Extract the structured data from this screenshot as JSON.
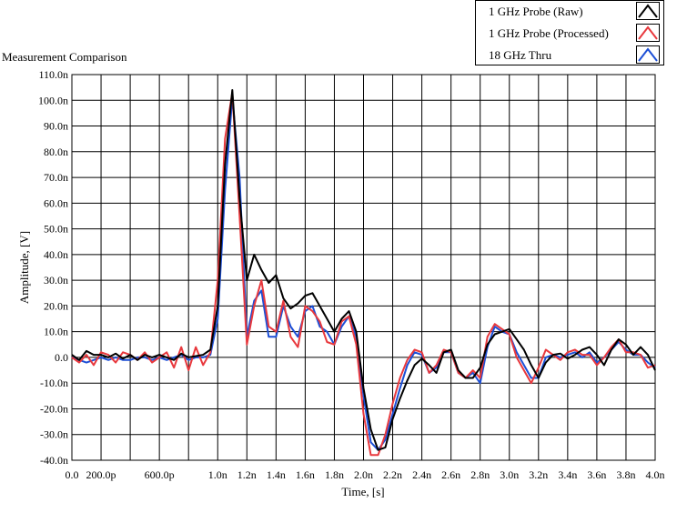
{
  "chart_data": {
    "type": "line",
    "title": "Measurement Comparison",
    "xlabel": "Time, [s]",
    "ylabel": "Amplitude, [V]",
    "xlim": [
      0,
      4e-09
    ],
    "ylim": [
      -4e-08,
      1.1e-07
    ],
    "grid": true,
    "legend_position": "top-right",
    "x_ticks": [
      {
        "value": 0,
        "label": "0.0"
      },
      {
        "value": 2e-10,
        "label": "200.0p"
      },
      {
        "value": 6e-10,
        "label": "600.0p"
      },
      {
        "value": 1e-09,
        "label": "1.0n"
      },
      {
        "value": 1.2e-09,
        "label": "1.2n"
      },
      {
        "value": 1.4e-09,
        "label": "1.4n"
      },
      {
        "value": 1.6e-09,
        "label": "1.6n"
      },
      {
        "value": 1.8e-09,
        "label": "1.8n"
      },
      {
        "value": 2e-09,
        "label": "2.0n"
      },
      {
        "value": 2.2e-09,
        "label": "2.2n"
      },
      {
        "value": 2.4e-09,
        "label": "2.4n"
      },
      {
        "value": 2.6e-09,
        "label": "2.6n"
      },
      {
        "value": 2.8e-09,
        "label": "2.8n"
      },
      {
        "value": 3e-09,
        "label": "3.0n"
      },
      {
        "value": 3.2e-09,
        "label": "3.2n"
      },
      {
        "value": 3.4e-09,
        "label": "3.4n"
      },
      {
        "value": 3.6e-09,
        "label": "3.6n"
      },
      {
        "value": 3.8e-09,
        "label": "3.8n"
      },
      {
        "value": 4e-09,
        "label": "4.0n"
      }
    ],
    "x_grid": [
      0,
      2e-10,
      4e-10,
      6e-10,
      8e-10,
      1e-09,
      1.2e-09,
      1.4e-09,
      1.6e-09,
      1.8e-09,
      2e-09,
      2.2e-09,
      2.4e-09,
      2.6e-09,
      2.8e-09,
      3e-09,
      3.2e-09,
      3.4e-09,
      3.6e-09,
      3.8e-09,
      4e-09
    ],
    "y_ticks": [
      {
        "value": 1.1e-07,
        "label": "110.0n"
      },
      {
        "value": 1e-07,
        "label": "100.0n"
      },
      {
        "value": 9e-08,
        "label": "90.0n"
      },
      {
        "value": 8e-08,
        "label": "80.0n"
      },
      {
        "value": 7e-08,
        "label": "70.0n"
      },
      {
        "value": 6e-08,
        "label": "60.0n"
      },
      {
        "value": 5e-08,
        "label": "50.0n"
      },
      {
        "value": 4e-08,
        "label": "40.0n"
      },
      {
        "value": 3e-08,
        "label": "30.0n"
      },
      {
        "value": 2e-08,
        "label": "20.0n"
      },
      {
        "value": 1e-08,
        "label": "10.0n"
      },
      {
        "value": 0,
        "label": "0.0"
      },
      {
        "value": -1e-08,
        "label": "-10.0n"
      },
      {
        "value": -2e-08,
        "label": "-20.0n"
      },
      {
        "value": -3e-08,
        "label": "-30.0n"
      },
      {
        "value": -4e-08,
        "label": "-40.0n"
      }
    ],
    "series": [
      {
        "name": "1 GHz Probe (Raw)",
        "color": "#000000",
        "x": [
          0,
          5e-11,
          1e-10,
          1.5e-10,
          2e-10,
          2.5e-10,
          3e-10,
          3.5e-10,
          4e-10,
          4.5e-10,
          5e-10,
          5.5e-10,
          6e-10,
          6.5e-10,
          7e-10,
          7.5e-10,
          8e-10,
          8.5e-10,
          9e-10,
          9.5e-10,
          1e-09,
          1.05e-09,
          1.1e-09,
          1.15e-09,
          1.2e-09,
          1.25e-09,
          1.3e-09,
          1.35e-09,
          1.4e-09,
          1.45e-09,
          1.5e-09,
          1.55e-09,
          1.6e-09,
          1.65e-09,
          1.7e-09,
          1.75e-09,
          1.8e-09,
          1.85e-09,
          1.9e-09,
          1.95e-09,
          2e-09,
          2.05e-09,
          2.1e-09,
          2.15e-09,
          2.2e-09,
          2.25e-09,
          2.3e-09,
          2.35e-09,
          2.4e-09,
          2.45e-09,
          2.5e-09,
          2.55e-09,
          2.6e-09,
          2.65e-09,
          2.7e-09,
          2.75e-09,
          2.8e-09,
          2.85e-09,
          2.9e-09,
          2.95e-09,
          3e-09,
          3.05e-09,
          3.1e-09,
          3.15e-09,
          3.2e-09,
          3.25e-09,
          3.3e-09,
          3.35e-09,
          3.4e-09,
          3.45e-09,
          3.5e-09,
          3.55e-09,
          3.6e-09,
          3.65e-09,
          3.7e-09,
          3.75e-09,
          3.8e-09,
          3.85e-09,
          3.9e-09,
          3.95e-09,
          4e-09
        ],
        "y": [
          1e-09,
          -1e-09,
          2.5e-09,
          1e-09,
          1e-09,
          0,
          1.5e-09,
          -5e-10,
          1e-09,
          -1e-09,
          1e-09,
          0,
          1e-09,
          0,
          -1e-09,
          1.5e-09,
          0,
          5e-10,
          1e-09,
          3e-09,
          2e-08,
          7.5e-08,
          1.04e-07,
          6.2e-08,
          3e-08,
          4e-08,
          3.4e-08,
          2.9e-08,
          3.2e-08,
          2.3e-08,
          1.9e-08,
          2.1e-08,
          2.4e-08,
          2.5e-08,
          2e-08,
          1.5e-08,
          1e-08,
          1.5e-08,
          1.8e-08,
          1e-08,
          -1.2e-08,
          -2.8e-08,
          -3.6e-08,
          -3.5e-08,
          -2.4e-08,
          -1.6e-08,
          -9e-09,
          -3e-09,
          -5e-10,
          -3e-09,
          -6e-09,
          2e-09,
          3e-09,
          -5e-09,
          -8e-09,
          -8e-09,
          -4e-09,
          5e-09,
          9e-09,
          1e-08,
          1.1e-08,
          7e-09,
          3e-09,
          -3e-09,
          -8e-09,
          -2e-09,
          1e-09,
          1.5e-09,
          -5e-10,
          1e-09,
          3e-09,
          4e-09,
          1e-09,
          -3e-09,
          3e-09,
          7e-09,
          5e-09,
          1e-09,
          4e-09,
          1e-09,
          -5e-09
        ]
      },
      {
        "name": "1 GHz Probe (Processed)",
        "color": "#e8383d",
        "x": [
          0,
          5e-11,
          1e-10,
          1.5e-10,
          2e-10,
          2.5e-10,
          3e-10,
          3.5e-10,
          4e-10,
          4.5e-10,
          5e-10,
          5.5e-10,
          6e-10,
          6.5e-10,
          7e-10,
          7.5e-10,
          8e-10,
          8.5e-10,
          9e-10,
          9.5e-10,
          1e-09,
          1.05e-09,
          1.1e-09,
          1.15e-09,
          1.2e-09,
          1.25e-09,
          1.3e-09,
          1.35e-09,
          1.4e-09,
          1.45e-09,
          1.5e-09,
          1.55e-09,
          1.6e-09,
          1.65e-09,
          1.7e-09,
          1.75e-09,
          1.8e-09,
          1.85e-09,
          1.9e-09,
          1.95e-09,
          2e-09,
          2.05e-09,
          2.1e-09,
          2.15e-09,
          2.2e-09,
          2.25e-09,
          2.3e-09,
          2.35e-09,
          2.4e-09,
          2.45e-09,
          2.5e-09,
          2.55e-09,
          2.6e-09,
          2.65e-09,
          2.7e-09,
          2.75e-09,
          2.8e-09,
          2.85e-09,
          2.9e-09,
          2.95e-09,
          3e-09,
          3.05e-09,
          3.1e-09,
          3.15e-09,
          3.2e-09,
          3.25e-09,
          3.3e-09,
          3.35e-09,
          3.4e-09,
          3.45e-09,
          3.5e-09,
          3.55e-09,
          3.6e-09,
          3.65e-09,
          3.7e-09,
          3.75e-09,
          3.8e-09,
          3.85e-09,
          3.9e-09,
          3.95e-09,
          4e-09
        ],
        "y": [
          0,
          -2e-09,
          1e-09,
          -3e-09,
          2e-09,
          1e-09,
          -2e-09,
          2e-09,
          1e-09,
          -1e-09,
          2e-09,
          -2e-09,
          0,
          2e-09,
          -4e-09,
          4e-09,
          -5e-09,
          4e-09,
          -3e-09,
          2e-09,
          3e-08,
          8.5e-08,
          1.03e-07,
          5.5e-08,
          5e-09,
          2e-08,
          3e-08,
          1.2e-08,
          1e-08,
          2.2e-08,
          8e-09,
          4e-09,
          2e-08,
          1.8e-08,
          1.4e-08,
          6e-09,
          5e-09,
          1.4e-08,
          1.6e-08,
          5e-09,
          -2.2e-08,
          -3.8e-08,
          -3.8e-08,
          -3e-08,
          -1.8e-08,
          -8e-09,
          -1e-09,
          3e-09,
          2e-09,
          -6e-09,
          -3e-09,
          3e-09,
          2e-09,
          -6e-09,
          -8e-09,
          -5e-09,
          -8e-09,
          8e-09,
          1.3e-08,
          1.1e-08,
          9e-09,
          0,
          -5e-09,
          -1e-08,
          -4e-09,
          3e-09,
          1e-09,
          -1e-09,
          2e-09,
          3e-09,
          1e-09,
          1e-09,
          -3e-09,
          0,
          4e-09,
          7e-09,
          2e-09,
          2e-09,
          1e-09,
          -4e-09,
          -3e-09
        ]
      },
      {
        "name": "18 GHz Thru",
        "color": "#1c4fd6",
        "x": [
          0,
          5e-11,
          1e-10,
          1.5e-10,
          2e-10,
          2.5e-10,
          3e-10,
          3.5e-10,
          4e-10,
          4.5e-10,
          5e-10,
          5.5e-10,
          6e-10,
          6.5e-10,
          7e-10,
          7.5e-10,
          8e-10,
          8.5e-10,
          9e-10,
          9.5e-10,
          1e-09,
          1.05e-09,
          1.1e-09,
          1.15e-09,
          1.2e-09,
          1.25e-09,
          1.3e-09,
          1.35e-09,
          1.4e-09,
          1.45e-09,
          1.5e-09,
          1.55e-09,
          1.6e-09,
          1.65e-09,
          1.7e-09,
          1.75e-09,
          1.8e-09,
          1.85e-09,
          1.9e-09,
          1.95e-09,
          2e-09,
          2.05e-09,
          2.1e-09,
          2.15e-09,
          2.2e-09,
          2.25e-09,
          2.3e-09,
          2.35e-09,
          2.4e-09,
          2.45e-09,
          2.5e-09,
          2.55e-09,
          2.6e-09,
          2.65e-09,
          2.7e-09,
          2.75e-09,
          2.8e-09,
          2.85e-09,
          2.9e-09,
          2.95e-09,
          3e-09,
          3.05e-09,
          3.1e-09,
          3.15e-09,
          3.2e-09,
          3.25e-09,
          3.3e-09,
          3.35e-09,
          3.4e-09,
          3.45e-09,
          3.5e-09,
          3.55e-09,
          3.6e-09,
          3.65e-09,
          3.7e-09,
          3.75e-09,
          3.8e-09,
          3.85e-09,
          3.9e-09,
          3.95e-09,
          4e-09
        ],
        "y": [
          0,
          -1e-09,
          -2e-09,
          -1e-09,
          0,
          -1e-09,
          0,
          -1e-09,
          -1e-09,
          0,
          0,
          -1e-09,
          0,
          -1e-09,
          0,
          1e-09,
          -1e-09,
          0,
          0,
          1e-09,
          1.5e-08,
          6.5e-08,
          1.01e-07,
          7e-08,
          8e-09,
          2.2e-08,
          2.6e-08,
          8e-09,
          8e-09,
          2e-08,
          1.2e-08,
          8e-09,
          1.8e-08,
          2e-08,
          1.2e-08,
          1e-08,
          5e-09,
          1.2e-08,
          1.6e-08,
          8e-09,
          -1.5e-08,
          -3.3e-08,
          -3.6e-08,
          -3.2e-08,
          -2.2e-08,
          -1.2e-08,
          -3e-09,
          2e-09,
          1e-09,
          -6e-09,
          -4e-09,
          2e-09,
          2e-09,
          -6e-09,
          -8e-09,
          -6e-09,
          -1e-08,
          4e-09,
          1.2e-08,
          1e-08,
          9e-09,
          2e-09,
          -3e-09,
          -8e-09,
          -8e-09,
          0,
          1e-09,
          0,
          1e-09,
          2e-09,
          0,
          2e-09,
          -2e-09,
          0,
          3e-09,
          6e-09,
          3e-09,
          1e-09,
          1e-09,
          -2e-09,
          -4e-09
        ]
      }
    ]
  }
}
